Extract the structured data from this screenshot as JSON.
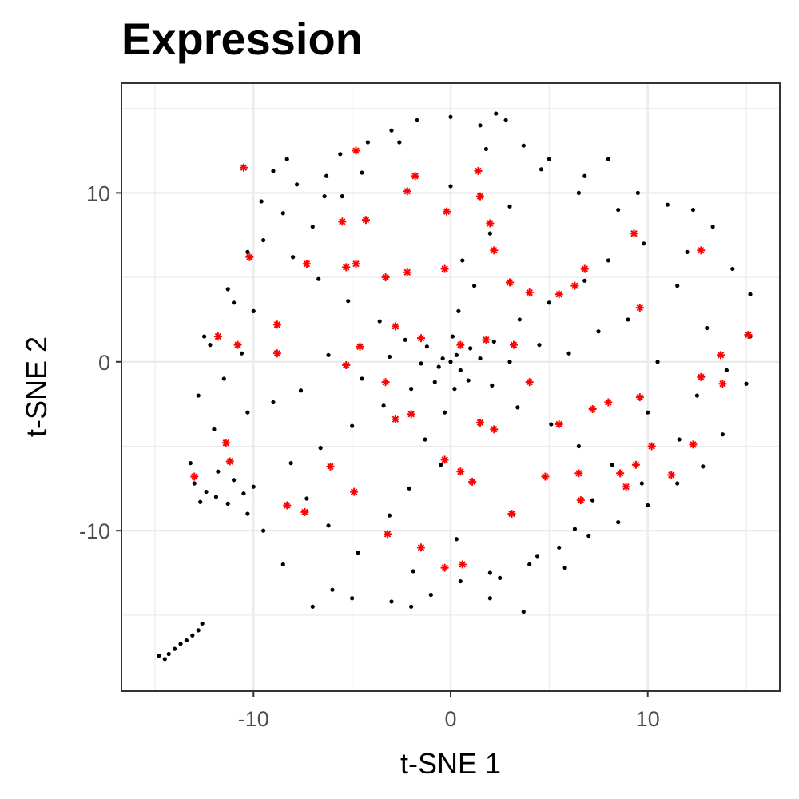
{
  "chart_data": {
    "type": "scatter",
    "title": "Expression",
    "xlabel": "t-SNE 1",
    "ylabel": "t-SNE 2",
    "xlim": [
      -16.7,
      16.7
    ],
    "ylim": [
      -19.5,
      16.5
    ],
    "x_ticks": [
      -10,
      0,
      10
    ],
    "x_tick_labels": [
      "-10",
      "0",
      "10"
    ],
    "y_ticks": [
      -10,
      0,
      10
    ],
    "y_tick_labels": [
      "-10",
      "0",
      "10"
    ],
    "grid": true,
    "colors": {
      "points": "#000000",
      "highlighted": "#ff0000",
      "grid": "#ebebeb",
      "border": "#333333"
    },
    "series": [
      {
        "marker": "dot",
        "color": "#000000",
        "points": [
          [
            -14.8,
            -17.4
          ],
          [
            -14.5,
            -17.6
          ],
          [
            -14.3,
            -17.3
          ],
          [
            -14.0,
            -17.0
          ],
          [
            -13.7,
            -16.7
          ],
          [
            -13.4,
            -16.5
          ],
          [
            -13.1,
            -16.2
          ],
          [
            -12.8,
            -15.9
          ],
          [
            -12.6,
            -15.5
          ],
          [
            -13.2,
            -6.0
          ],
          [
            -13.0,
            -7.2
          ],
          [
            -12.7,
            -8.3
          ],
          [
            -12.4,
            -7.7
          ],
          [
            -11.9,
            -8.0
          ],
          [
            -11.3,
            -8.4
          ],
          [
            -11.0,
            -7.0
          ],
          [
            -10.5,
            -7.8
          ],
          [
            -10.0,
            -7.4
          ],
          [
            -12.8,
            -2.0
          ],
          [
            -11.5,
            -1.0
          ],
          [
            -10.3,
            -3.0
          ],
          [
            -12.2,
            1.0
          ],
          [
            -11.0,
            3.5
          ],
          [
            -10.3,
            6.5
          ],
          [
            -9.6,
            9.5
          ],
          [
            -9.0,
            11.3
          ],
          [
            -8.3,
            12.0
          ],
          [
            -7.8,
            10.5
          ],
          [
            -7.0,
            8.0
          ],
          [
            -6.3,
            11.0
          ],
          [
            -5.5,
            9.8
          ],
          [
            -4.2,
            13.0
          ],
          [
            -3.0,
            13.7
          ],
          [
            -1.7,
            14.3
          ],
          [
            0.0,
            14.5
          ],
          [
            1.5,
            14.0
          ],
          [
            2.3,
            14.7
          ],
          [
            2.8,
            14.3
          ],
          [
            3.7,
            12.8
          ],
          [
            5.0,
            12.0
          ],
          [
            6.8,
            11.0
          ],
          [
            8.0,
            12.0
          ],
          [
            9.5,
            10.0
          ],
          [
            11.0,
            9.3
          ],
          [
            12.3,
            9.0
          ],
          [
            13.3,
            8.0
          ],
          [
            14.3,
            5.5
          ],
          [
            15.2,
            4.0
          ],
          [
            15.2,
            1.5
          ],
          [
            15.0,
            -1.3
          ],
          [
            13.8,
            -4.3
          ],
          [
            12.8,
            -6.2
          ],
          [
            11.5,
            -7.2
          ],
          [
            10.0,
            -8.5
          ],
          [
            8.5,
            -9.5
          ],
          [
            7.0,
            -10.3
          ],
          [
            5.5,
            -11.0
          ],
          [
            4.0,
            -12.0
          ],
          [
            2.0,
            -12.5
          ],
          [
            0.5,
            -13.0
          ],
          [
            -1.0,
            -13.8
          ],
          [
            -3.0,
            -14.2
          ],
          [
            -5.0,
            -14.0
          ],
          [
            -7.0,
            -14.5
          ],
          [
            -8.5,
            -12.0
          ],
          [
            -9.5,
            -10.0
          ],
          [
            -10.3,
            -9.0
          ],
          [
            3.7,
            -14.8
          ],
          [
            2.0,
            -14.0
          ],
          [
            -2.0,
            -14.5
          ],
          [
            -6.0,
            -13.5
          ],
          [
            0.0,
            0.0
          ],
          [
            0.3,
            0.4
          ],
          [
            -0.4,
            0.2
          ],
          [
            0.5,
            -0.5
          ],
          [
            -0.6,
            -0.3
          ],
          [
            1.0,
            0.8
          ],
          [
            -1.2,
            0.9
          ],
          [
            0.9,
            -1.1
          ],
          [
            -0.8,
            -1.2
          ],
          [
            1.5,
            0.2
          ],
          [
            -1.5,
            -0.1
          ],
          [
            0.1,
            1.5
          ],
          [
            0.2,
            -1.6
          ],
          [
            2.2,
            1.2
          ],
          [
            -2.3,
            1.3
          ],
          [
            2.1,
            -1.4
          ],
          [
            -2.0,
            -1.6
          ],
          [
            3.0,
            0.0
          ],
          [
            -3.1,
            0.3
          ],
          [
            0.4,
            3.0
          ],
          [
            -0.3,
            -3.0
          ],
          [
            3.5,
            2.5
          ],
          [
            -3.6,
            2.4
          ],
          [
            3.4,
            -2.7
          ],
          [
            -3.4,
            -2.6
          ],
          [
            4.5,
            1.0
          ],
          [
            -4.5,
            -1.0
          ],
          [
            1.2,
            4.5
          ],
          [
            -1.3,
            -4.6
          ],
          [
            5.0,
            3.5
          ],
          [
            -5.2,
            3.6
          ],
          [
            5.1,
            -3.7
          ],
          [
            -5.0,
            -3.8
          ],
          [
            6.0,
            0.5
          ],
          [
            -6.2,
            0.4
          ],
          [
            0.6,
            6.0
          ],
          [
            -0.5,
            -6.1
          ],
          [
            6.8,
            4.8
          ],
          [
            -6.7,
            4.9
          ],
          [
            6.5,
            -5.0
          ],
          [
            -6.6,
            -5.1
          ],
          [
            7.5,
            1.8
          ],
          [
            -7.6,
            -1.7
          ],
          [
            2.0,
            7.6
          ],
          [
            -2.1,
            -7.5
          ],
          [
            8.0,
            6.0
          ],
          [
            -8.0,
            6.2
          ],
          [
            8.2,
            -6.1
          ],
          [
            -8.1,
            -6.0
          ],
          [
            9.0,
            2.5
          ],
          [
            -9.0,
            -2.4
          ],
          [
            3.0,
            9.2
          ],
          [
            -3.1,
            -9.1
          ],
          [
            9.8,
            7.0
          ],
          [
            -9.5,
            7.2
          ],
          [
            9.7,
            -7.2
          ],
          [
            10.5,
            0.0
          ],
          [
            -10.6,
            0.5
          ],
          [
            0.0,
            10.4
          ],
          [
            0.3,
            -10.5
          ],
          [
            11.5,
            4.5
          ],
          [
            -11.3,
            4.3
          ],
          [
            11.6,
            -4.6
          ],
          [
            4.6,
            11.4
          ],
          [
            -4.5,
            11.2
          ],
          [
            4.4,
            -11.5
          ],
          [
            -4.7,
            -11.3
          ],
          [
            12.5,
            -2.0
          ],
          [
            -12.0,
            -4.0
          ],
          [
            13.0,
            2.0
          ],
          [
            1.8,
            12.6
          ],
          [
            -1.9,
            -12.4
          ],
          [
            6.5,
            10.0
          ],
          [
            -6.4,
            9.8
          ],
          [
            6.3,
            -9.9
          ],
          [
            -6.2,
            -9.7
          ],
          [
            10.0,
            -3.0
          ],
          [
            -10.0,
            3.0
          ],
          [
            8.5,
            9.0
          ],
          [
            -8.5,
            8.8
          ],
          [
            12.0,
            6.5
          ],
          [
            -12.5,
            1.5
          ],
          [
            7.2,
            -8.2
          ],
          [
            -7.3,
            -8.1
          ],
          [
            14.0,
            -0.5
          ],
          [
            -11.8,
            -6.5
          ],
          [
            2.5,
            -12.8
          ],
          [
            -2.6,
            13.0
          ],
          [
            5.8,
            -12.2
          ],
          [
            -5.6,
            12.3
          ]
        ]
      },
      {
        "marker": "asterisk",
        "color": "#ff0000",
        "points": [
          [
            -10.5,
            11.5
          ],
          [
            -4.8,
            12.5
          ],
          [
            1.4,
            11.3
          ],
          [
            -1.8,
            11.0
          ],
          [
            -2.2,
            10.1
          ],
          [
            1.5,
            9.8
          ],
          [
            -0.2,
            8.9
          ],
          [
            -4.3,
            8.4
          ],
          [
            -5.5,
            8.3
          ],
          [
            2.0,
            8.2
          ],
          [
            9.3,
            7.6
          ],
          [
            -10.2,
            6.2
          ],
          [
            -7.3,
            5.8
          ],
          [
            -5.3,
            5.6
          ],
          [
            -4.8,
            5.8
          ],
          [
            2.2,
            6.6
          ],
          [
            6.8,
            5.5
          ],
          [
            12.7,
            6.6
          ],
          [
            -3.3,
            5.0
          ],
          [
            -2.2,
            5.3
          ],
          [
            -0.3,
            5.5
          ],
          [
            3.0,
            4.7
          ],
          [
            6.3,
            4.5
          ],
          [
            5.5,
            4.0
          ],
          [
            4.0,
            4.1
          ],
          [
            -4.6,
            0.9
          ],
          [
            -8.8,
            2.2
          ],
          [
            -11.8,
            1.5
          ],
          [
            -10.8,
            1.0
          ],
          [
            -8.8,
            0.5
          ],
          [
            -2.8,
            2.1
          ],
          [
            -1.5,
            1.4
          ],
          [
            0.5,
            1.0
          ],
          [
            1.8,
            1.3
          ],
          [
            3.2,
            1.0
          ],
          [
            9.6,
            3.2
          ],
          [
            -5.3,
            -0.2
          ],
          [
            -3.3,
            -1.2
          ],
          [
            4.0,
            -1.2
          ],
          [
            -2.0,
            -3.1
          ],
          [
            -2.8,
            -3.4
          ],
          [
            1.5,
            -3.6
          ],
          [
            2.2,
            -4.0
          ],
          [
            5.5,
            -3.7
          ],
          [
            7.2,
            -2.8
          ],
          [
            8.0,
            -2.4
          ],
          [
            9.6,
            -2.1
          ],
          [
            12.7,
            -0.9
          ],
          [
            13.7,
            0.4
          ],
          [
            15.1,
            1.6
          ],
          [
            13.8,
            -1.3
          ],
          [
            -11.4,
            -4.8
          ],
          [
            -11.2,
            -5.9
          ],
          [
            -13.0,
            -6.8
          ],
          [
            -6.1,
            -6.2
          ],
          [
            -0.3,
            -5.8
          ],
          [
            0.5,
            -6.5
          ],
          [
            1.1,
            -7.1
          ],
          [
            4.8,
            -6.8
          ],
          [
            6.5,
            -6.6
          ],
          [
            8.6,
            -6.6
          ],
          [
            9.4,
            -6.1
          ],
          [
            11.2,
            -6.7
          ],
          [
            -7.4,
            -8.9
          ],
          [
            -8.3,
            -8.5
          ],
          [
            -4.9,
            -7.7
          ],
          [
            -3.2,
            -10.2
          ],
          [
            -1.5,
            -11.0
          ],
          [
            3.1,
            -9.0
          ],
          [
            6.6,
            -8.2
          ],
          [
            8.9,
            -7.4
          ],
          [
            -0.3,
            -12.2
          ],
          [
            0.6,
            -12.0
          ],
          [
            10.2,
            -5.0
          ],
          [
            12.3,
            -4.9
          ]
        ]
      }
    ]
  }
}
